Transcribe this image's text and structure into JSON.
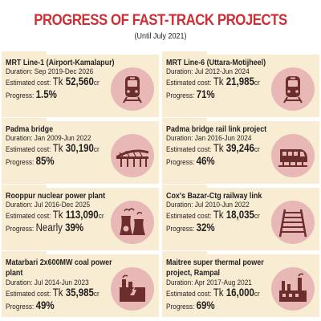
{
  "header": {
    "title": "PROGRESS OF FAST-TRACK PROJECTS",
    "subtitle": "(Until July 2021)"
  },
  "colors": {
    "title_red": "#ce2f34",
    "card_bg": "#f8ecd2",
    "icon_circle": "#e8b8b6",
    "icon_fill": "#6b2d2d"
  },
  "labels": {
    "duration": "Duration: ",
    "cost": "Estimated cost: ",
    "progress": "Progress: "
  },
  "projects": [
    {
      "name": "MRT Line-1 (Airport-Kamalapur)",
      "duration": "Sep 2019-Dec 2026",
      "cost_prefix": "Tk ",
      "cost": "52,560",
      "cost_unit": "cr",
      "progress_prefix": "",
      "progress": "1.5%",
      "icon": "metro-train-icon"
    },
    {
      "name": "MRT Line-6 (Uttara-Motijheel)",
      "duration": "Jul 2012-Jun 2024",
      "cost_prefix": "Tk ",
      "cost": "21,985",
      "cost_unit": "cr",
      "progress_prefix": "",
      "progress": "71%",
      "icon": "metro-train-icon"
    },
    {
      "name": "Padma bridge",
      "duration": "Jan 2009-Jun 2022",
      "cost_prefix": "Tk ",
      "cost": "30,190",
      "cost_unit": "cr",
      "progress_prefix": "",
      "progress": "85%",
      "icon": "bridge-icon"
    },
    {
      "name": "Padma bridge rail link project",
      "duration": "Jan 2016-Jun 2024",
      "cost_prefix": "Tk ",
      "cost": "39,246",
      "cost_unit": "cr",
      "progress_prefix": "",
      "progress": "46%",
      "icon": "bullet-train-icon"
    },
    {
      "name": "Rooppur nuclear power plant",
      "duration": "Jul 2016-Dec 2025",
      "cost_prefix": "Tk ",
      "cost": "113,090",
      "cost_unit": "cr",
      "progress_prefix": "Nearly ",
      "progress": "39%",
      "icon": "nuclear-plant-icon"
    },
    {
      "name": "Cox's Bazar-Ctg railway link",
      "duration": "Jul 2010-Jun 2022",
      "cost_prefix": "Tk ",
      "cost": "18,035",
      "cost_unit": "cr",
      "progress_prefix": "",
      "progress": "32%",
      "icon": "railway-track-icon"
    },
    {
      "name": "Matarbari 2x600MW coal power plant",
      "duration": "Jul 2014-Jun 2023",
      "cost_prefix": "Tk ",
      "cost": "35,985",
      "cost_unit": "cr",
      "progress_prefix": "",
      "progress": "49%",
      "icon": "coal-plant-icon"
    },
    {
      "name": "Maitree super thermal power project, Rampal",
      "duration": "Apr 2017-Aug 2021",
      "cost_prefix": "Tk ",
      "cost": "16,000",
      "cost_unit": "cr",
      "progress_prefix": "",
      "progress": "69%",
      "icon": "thermal-plant-icon"
    }
  ]
}
